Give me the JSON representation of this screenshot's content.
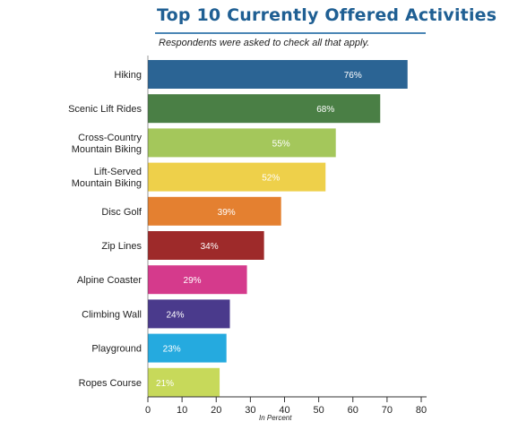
{
  "chart_data": {
    "type": "bar",
    "orientation": "horizontal",
    "title": "Top 10 Currently Offered Activities",
    "subtitle": "Respondents were asked to check all that apply.",
    "xlabel": "In Percent",
    "ylabel": "",
    "xlim": [
      0,
      80
    ],
    "xticks": [
      0,
      10,
      20,
      30,
      40,
      50,
      60,
      70,
      80
    ],
    "grid": false,
    "categories": [
      [
        "Hiking"
      ],
      [
        "Scenic Lift Rides"
      ],
      [
        "Cross-Country",
        "Mountain Biking"
      ],
      [
        "Lift-Served",
        "Mountain Biking"
      ],
      [
        "Disc Golf"
      ],
      [
        "Zip Lines"
      ],
      [
        "Alpine Coaster"
      ],
      [
        "Climbing Wall"
      ],
      [
        "Playground"
      ],
      [
        "Ropes Course"
      ]
    ],
    "values": [
      76,
      68,
      55,
      52,
      39,
      34,
      29,
      24,
      23,
      21
    ],
    "value_labels": [
      "76%",
      "68%",
      "55%",
      "52%",
      "39%",
      "34%",
      "29%",
      "24%",
      "23%",
      "21%"
    ],
    "colors": [
      "#2b6494",
      "#4a7f45",
      "#a4c75b",
      "#eed04a",
      "#e48030",
      "#9e2a2a",
      "#d53a8c",
      "#4a3a8c",
      "#25aadf",
      "#c7d95a"
    ]
  }
}
